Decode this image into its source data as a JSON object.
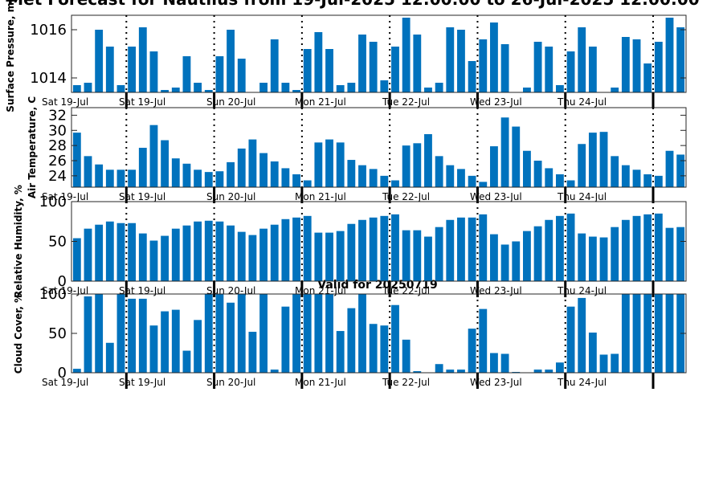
{
  "figure": {
    "title": "Met Forecast for Nautilus from 19-Jul-2025 12:00:00 to 26-Jul-2025 12:00:00",
    "valid_label": "Valid for 20250719"
  },
  "chart_data": [
    {
      "type": "bar",
      "ylabel": "Surface Pressure, mb",
      "ylim": [
        1013.4,
        1016.6
      ],
      "yticks": [
        1014,
        1016
      ],
      "color": "#0072BD",
      "xticklabels": [
        "Sat 19-Jul",
        "Sat 19-Jul",
        "Sun 20-Jul",
        "Mon 21-Jul",
        "Tue 22-Jul",
        "Wed 23-Jul",
        "Thu 24-Jul"
      ],
      "day_boundaries": [
        4.5,
        12.5,
        20.5,
        28.5,
        36.5,
        44.5,
        52.5
      ],
      "values": [
        1013.7,
        1013.8,
        1016.0,
        1015.3,
        1013.7,
        1015.3,
        1016.1,
        1015.1,
        1013.5,
        1013.6,
        1014.9,
        1013.8,
        1013.5,
        1014.9,
        1016.0,
        1014.8,
        1013.4,
        1013.8,
        1015.6,
        1013.8,
        1013.5,
        1015.2,
        1015.9,
        1015.2,
        1013.7,
        1013.8,
        1015.8,
        1015.5,
        1013.9,
        1015.3,
        1016.5,
        1015.8,
        1013.6,
        1013.8,
        1016.1,
        1016.0,
        1014.7,
        1015.6,
        1016.3,
        1015.4,
        1013.4,
        1013.6,
        1015.5,
        1015.3,
        1013.7,
        1015.1,
        1016.1,
        1015.3,
        1013.3,
        1013.6,
        1015.7,
        1015.6,
        1014.6,
        1015.5,
        1016.5,
        1016.1
      ]
    },
    {
      "type": "bar",
      "ylabel": "Air Temperature, C",
      "ylim": [
        22.5,
        33
      ],
      "yticks": [
        24,
        26,
        28,
        30,
        32
      ],
      "color": "#0072BD",
      "xticklabels": [
        "Sat 19-Jul",
        "Sat 19-Jul",
        "Sun 20-Jul",
        "Mon 21-Jul",
        "Tue 22-Jul",
        "Wed 23-Jul",
        "Thu 24-Jul"
      ],
      "day_boundaries": [
        4.5,
        12.5,
        20.5,
        28.5,
        36.5,
        44.5,
        52.5
      ],
      "values": [
        29.7,
        26.6,
        25.5,
        24.8,
        24.8,
        24.8,
        27.7,
        30.7,
        28.7,
        26.3,
        25.6,
        24.8,
        24.5,
        24.6,
        25.8,
        27.6,
        28.8,
        27.0,
        25.9,
        25.0,
        24.2,
        23.4,
        28.4,
        28.8,
        28.4,
        26.1,
        25.4,
        24.9,
        24.0,
        23.4,
        28.0,
        28.3,
        29.5,
        26.6,
        25.4,
        24.9,
        24.0,
        23.2,
        27.9,
        31.7,
        30.5,
        27.3,
        26.0,
        25.0,
        24.2,
        23.4,
        28.2,
        29.7,
        29.8,
        26.6,
        25.4,
        24.8,
        24.2,
        24.0,
        27.3,
        26.8
      ]
    },
    {
      "type": "bar",
      "ylabel": "Relative Humidity, %",
      "ylim": [
        0,
        100
      ],
      "yticks": [
        0,
        50,
        100
      ],
      "color": "#0072BD",
      "xticklabels": [
        "Sat 19-Jul",
        "Sat 19-Jul",
        "Sun 20-Jul",
        "Mon 21-Jul",
        "Tue 22-Jul",
        "Wed 23-Jul",
        "Thu 24-Jul"
      ],
      "day_boundaries": [
        4.5,
        12.5,
        20.5,
        28.5,
        36.5,
        44.5,
        52.5
      ],
      "values": [
        54,
        66,
        71,
        75,
        73,
        73,
        60,
        51,
        57,
        66,
        70,
        75,
        76,
        75,
        70,
        62,
        58,
        66,
        71,
        78,
        80,
        82,
        61,
        61,
        63,
        72,
        77,
        80,
        82,
        84,
        64,
        64,
        56,
        68,
        77,
        80,
        80,
        84,
        59,
        46,
        50,
        63,
        69,
        77,
        82,
        85,
        60,
        56,
        55,
        68,
        77,
        82,
        84,
        85,
        67,
        68
      ]
    },
    {
      "type": "bar",
      "ylabel": "Cloud Cover, %",
      "ylim": [
        0,
        100
      ],
      "yticks": [
        0,
        50,
        100
      ],
      "color": "#0072BD",
      "xticklabels": [
        "Sat 19-Jul",
        "Sat 19-Jul",
        "Sun 20-Jul",
        "Mon 21-Jul",
        "Tue 22-Jul",
        "Wed 23-Jul",
        "Thu 24-Jul"
      ],
      "day_boundaries": [
        4.5,
        12.5,
        20.5,
        28.5,
        36.5,
        44.5,
        52.5
      ],
      "values": [
        5,
        97,
        100,
        38,
        100,
        94,
        94,
        60,
        78,
        80,
        28,
        67,
        100,
        100,
        89,
        100,
        52,
        100,
        4,
        84,
        100,
        100,
        100,
        100,
        53,
        82,
        100,
        62,
        60,
        86,
        42,
        2,
        0,
        11,
        4,
        4,
        56,
        81,
        25,
        24,
        1,
        0,
        4,
        4,
        13,
        84,
        95,
        51,
        23,
        24,
        100,
        100,
        100,
        100,
        100,
        100
      ]
    }
  ]
}
